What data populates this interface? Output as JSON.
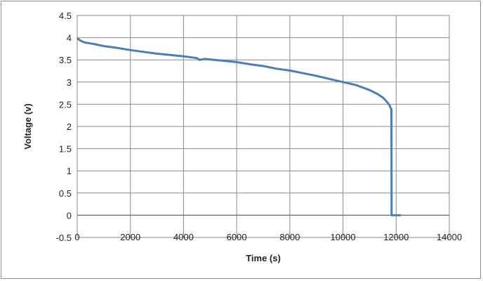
{
  "chart_data": {
    "type": "line",
    "title": "",
    "xlabel": "Time (s)",
    "ylabel": "Voltage (v)",
    "xlim": [
      0,
      14000
    ],
    "ylim": [
      -0.5,
      4.5
    ],
    "x_ticks": [
      0,
      2000,
      4000,
      6000,
      8000,
      10000,
      12000,
      14000
    ],
    "y_ticks": [
      4.5,
      4,
      3.5,
      3,
      2.5,
      2,
      1.5,
      1,
      0.5,
      0,
      -0.5
    ],
    "grid": true,
    "legend": "none",
    "line_color": "#4a7ebb",
    "series": [
      {
        "x": [
          20,
          100,
          200,
          300,
          400,
          500,
          700,
          1000,
          1500,
          2000,
          2500,
          3000,
          3500,
          4000,
          4500,
          4600,
          4800,
          5000,
          5500,
          6000,
          6500,
          7000,
          7500,
          8000,
          8500,
          9000,
          9500,
          10000,
          10500,
          11000,
          11300,
          11500,
          11600,
          11700,
          11750,
          11790,
          11810,
          11820,
          11830,
          11850,
          11900,
          12000,
          12150
        ],
        "y": [
          3.98,
          3.94,
          3.91,
          3.89,
          3.88,
          3.87,
          3.85,
          3.81,
          3.77,
          3.72,
          3.68,
          3.64,
          3.61,
          3.58,
          3.54,
          3.5,
          3.52,
          3.51,
          3.48,
          3.45,
          3.4,
          3.36,
          3.3,
          3.26,
          3.2,
          3.14,
          3.07,
          3.0,
          2.93,
          2.82,
          2.73,
          2.65,
          2.59,
          2.52,
          2.48,
          2.42,
          2.39,
          2.39,
          0.0,
          0.0,
          0.0,
          0.0,
          0.0
        ]
      }
    ]
  }
}
